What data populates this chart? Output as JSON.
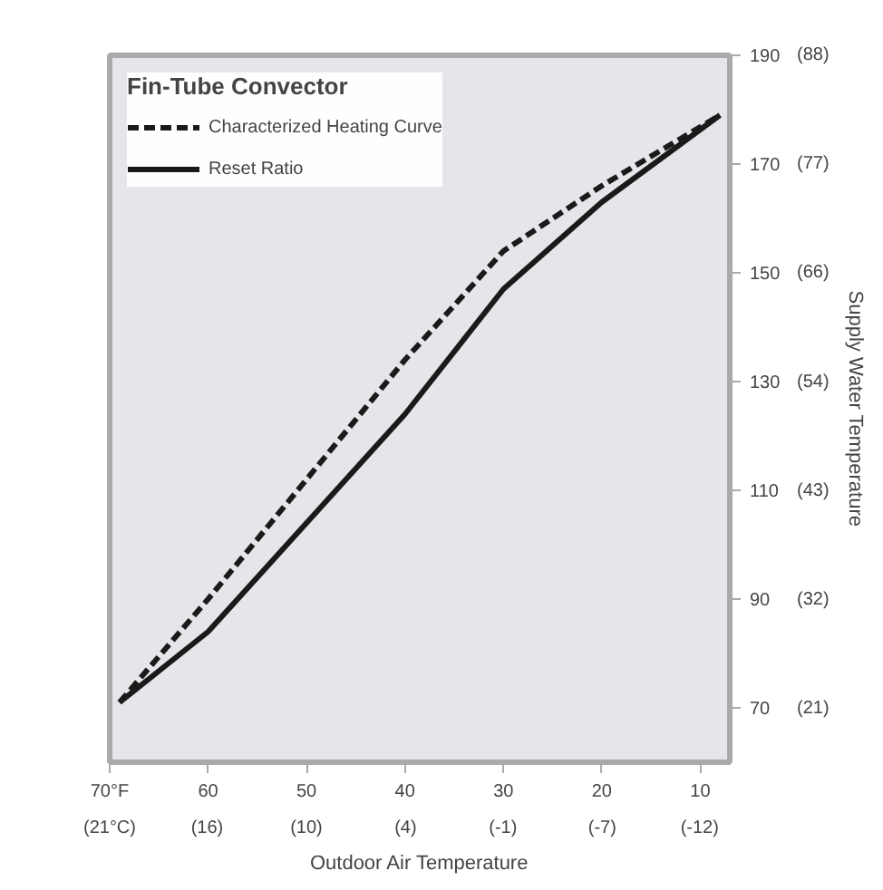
{
  "chart_data": {
    "type": "line",
    "legend_title": "Fin-Tube Convector",
    "x2label": "Outdoor Air Temperature",
    "y2label": "Supply Water Temperature",
    "series": [
      {
        "name": "Characterized Heating Curve",
        "color": "#1a1a1a",
        "line_style": "dashed",
        "x": [
          69,
          60,
          50,
          40,
          30,
          20,
          8
        ],
        "values": [
          71,
          90,
          112,
          134,
          154,
          166,
          179
        ]
      },
      {
        "name": "Reset Ratio",
        "color": "#1a1a1a",
        "line_style": "solid",
        "x": [
          69,
          60,
          50,
          40,
          30,
          20,
          8
        ],
        "values": [
          71,
          84,
          104,
          124,
          147,
          163,
          179
        ]
      }
    ],
    "xlim": [
      70,
      7
    ],
    "ylim": [
      60,
      190
    ],
    "xticks": [
      {
        "value": 70,
        "label": "70°F"
      },
      60,
      50,
      40,
      30,
      20,
      10
    ],
    "x2lim": [
      21.1,
      -13.9
    ],
    "x2ticks": [
      {
        "value": 21.1,
        "label": "(21°C)"
      },
      {
        "value": 15.6,
        "label": "(16)"
      },
      {
        "value": 10,
        "label": "(10)"
      },
      {
        "value": 4.4,
        "label": "(4)"
      },
      {
        "value": -1.1,
        "label": "(-1)"
      },
      {
        "value": -6.7,
        "label": "(-7)"
      },
      {
        "value": -12.2,
        "label": "(-12)"
      }
    ],
    "yticks": [
      70,
      90,
      110,
      130,
      150,
      170,
      190
    ],
    "y2lim": [
      15.6,
      87.8
    ],
    "y2ticks": [
      {
        "value": 21.1,
        "label": "(21)"
      },
      {
        "value": 32.2,
        "label": "(32)"
      },
      {
        "value": 43.3,
        "label": "(43)"
      },
      {
        "value": 54.4,
        "label": "(54)"
      },
      {
        "value": 65.6,
        "label": "(66)"
      },
      {
        "value": 76.7,
        "label": "(77)"
      },
      {
        "value": 87.8,
        "label": "(88)"
      }
    ],
    "legend": "top left",
    "grid": false
  }
}
